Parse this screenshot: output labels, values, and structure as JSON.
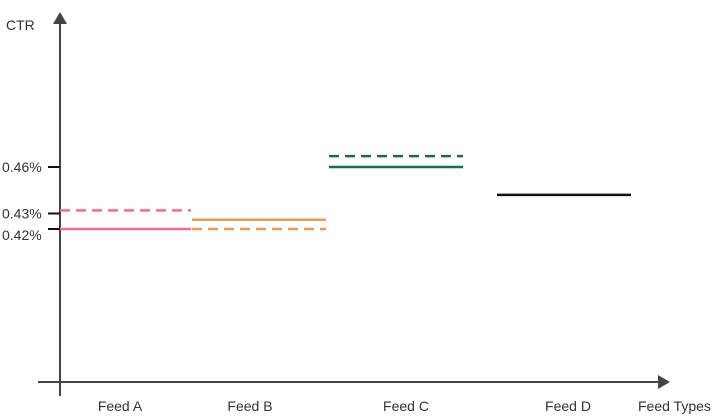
{
  "chart_data": {
    "type": "line",
    "ylabel": "CTR",
    "xlabel": "Feed Types",
    "categories": [
      "Feed A",
      "Feed B",
      "Feed C",
      "Feed D"
    ],
    "y_ticks": [
      {
        "value": 0.46,
        "label": "0.46%"
      },
      {
        "value": 0.43,
        "label": "0.43%"
      },
      {
        "value": 0.42,
        "label": "0.42%"
      }
    ],
    "series": [
      {
        "style": "solid",
        "values": [
          0.42,
          0.426,
          0.46,
          0.442
        ]
      },
      {
        "style": "dashed",
        "values": [
          0.432,
          0.42,
          0.467,
          null
        ]
      }
    ],
    "colors": [
      "#ee6aa0",
      "#ee9a4e",
      "#1e6b4b",
      "#111111"
    ]
  }
}
